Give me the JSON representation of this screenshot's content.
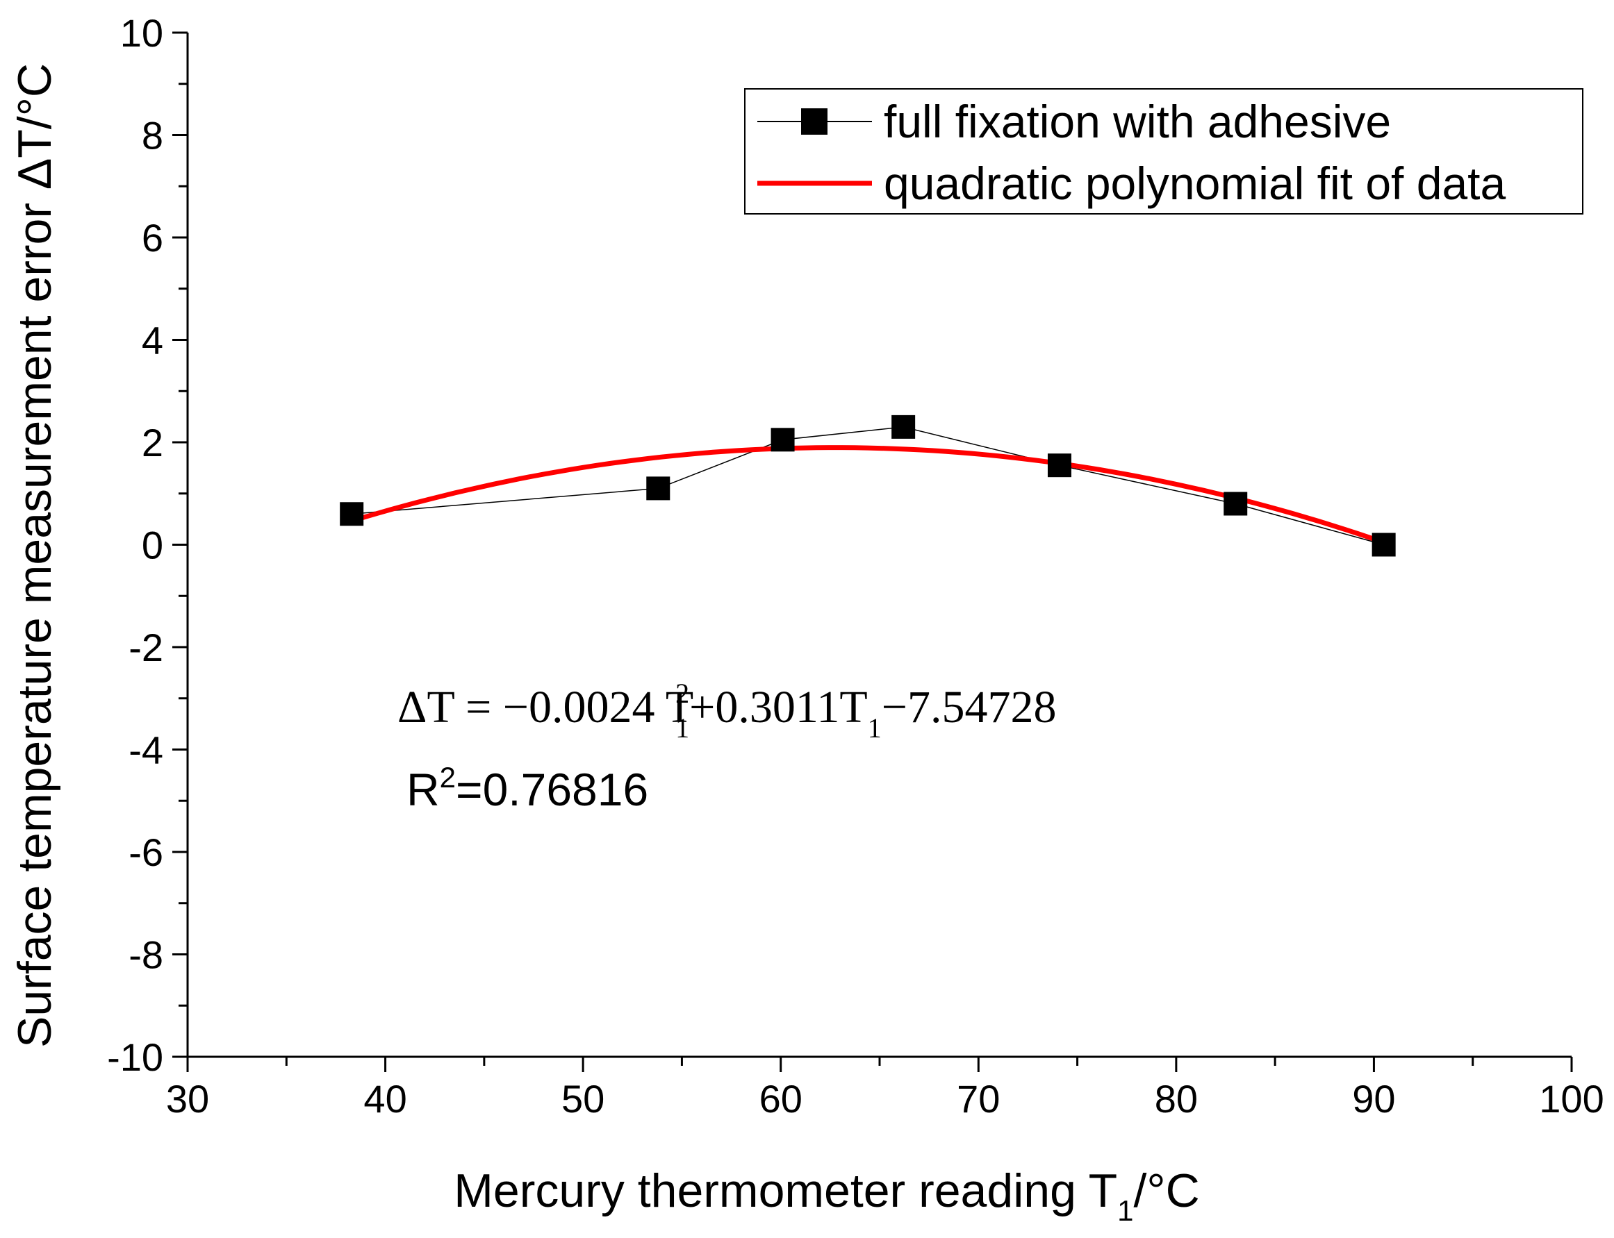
{
  "chart_data": {
    "type": "line",
    "xlabel": "Mercury thermometer reading T",
    "xlabel_sub": "1",
    "xlabel_suffix": "/°C",
    "ylabel": "Surface temperature measurement error ΔT/°C",
    "xlim": [
      30,
      100
    ],
    "ylim": [
      -10,
      10
    ],
    "x_ticks": [
      30,
      40,
      50,
      60,
      70,
      80,
      90,
      100
    ],
    "y_ticks": [
      -10,
      -8,
      -6,
      -4,
      -2,
      0,
      2,
      4,
      6,
      8,
      10
    ],
    "grid": false,
    "legend_position": "top-right",
    "series": [
      {
        "name": "full fixation with adhesive",
        "color": "#000000",
        "marker": "square",
        "x": [
          38.3,
          53.8,
          60.1,
          66.2,
          74.1,
          83.0,
          90.5
        ],
        "y": [
          0.6,
          1.1,
          2.05,
          2.3,
          1.55,
          0.8,
          0.0
        ]
      },
      {
        "name": "quadratic polynomial fit of data",
        "color": "#ff0000",
        "marker": "none",
        "fit": {
          "a": -0.0024,
          "b": 0.3011,
          "c": -7.54728,
          "x_range": [
            38.3,
            90.5
          ]
        }
      }
    ],
    "annotations": {
      "eq_prefix": "ΔT = −0.0024 T",
      "eq_sup": "2",
      "eq_sub1": "1",
      "eq_middle": "+0.3011T",
      "eq_sub2": "1",
      "eq_suffix": "−7.54728",
      "r2_prefix": "R",
      "r2_sup": "2",
      "r2_value": "=0.76816"
    }
  }
}
